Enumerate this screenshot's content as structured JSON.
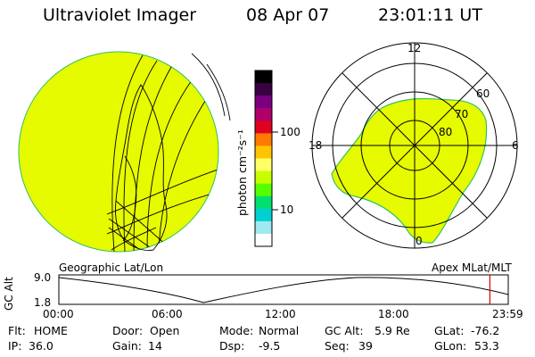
{
  "header": {
    "instrument": "Ultraviolet Imager",
    "date": "08 Apr 07",
    "time": "23:01:11 UT"
  },
  "colorbar": {
    "unit_label": "photon cm⁻²s⁻¹",
    "ticks": [
      "100",
      "10"
    ],
    "colors": [
      "#000000",
      "#3a0044",
      "#7a0080",
      "#b0006a",
      "#e00020",
      "#ff7a00",
      "#ffc400",
      "#ffff66",
      "#c8ff00",
      "#55ff00",
      "#00e070",
      "#00d0d0",
      "#a0e8f0",
      "#ffffff"
    ]
  },
  "left_panel": {
    "caption": "Geographic Lat/Lon",
    "fill_color": "#e6fa00",
    "rim_color": "#30c060"
  },
  "right_panel": {
    "caption": "Apex MLat/MLT",
    "mlt_labels": {
      "top": "12",
      "left": "18",
      "right": "6",
      "bottom": "0"
    },
    "lat_labels": [
      "60",
      "70",
      "80"
    ]
  },
  "altitude_plot": {
    "ylabel": "GC Alt",
    "ytick_high": "9.0",
    "ytick_low": "1.8",
    "xticks": [
      "00:00",
      "06:00",
      "12:00",
      "18:00",
      "23:59"
    ],
    "marker_color": "#e00000",
    "current_hours": 23.02
  },
  "status": [
    [
      {
        "label": "Flt:",
        "value": "HOME"
      },
      {
        "label": "Door:",
        "value": "Open"
      },
      {
        "label": "Mode:",
        "value": "Normal"
      },
      {
        "label": "GC Alt:",
        "value": "5.9 Re"
      },
      {
        "label": "GLat:",
        "value": "-76.2"
      }
    ],
    [
      {
        "label": "IP:",
        "value": "36.0"
      },
      {
        "label": "Gain:",
        "value": "14"
      },
      {
        "label": "Dsp:",
        "value": "-9.5"
      },
      {
        "label": "Seq:",
        "value": "39"
      },
      {
        "label": "GLon:",
        "value": "53.3"
      }
    ]
  ]
}
